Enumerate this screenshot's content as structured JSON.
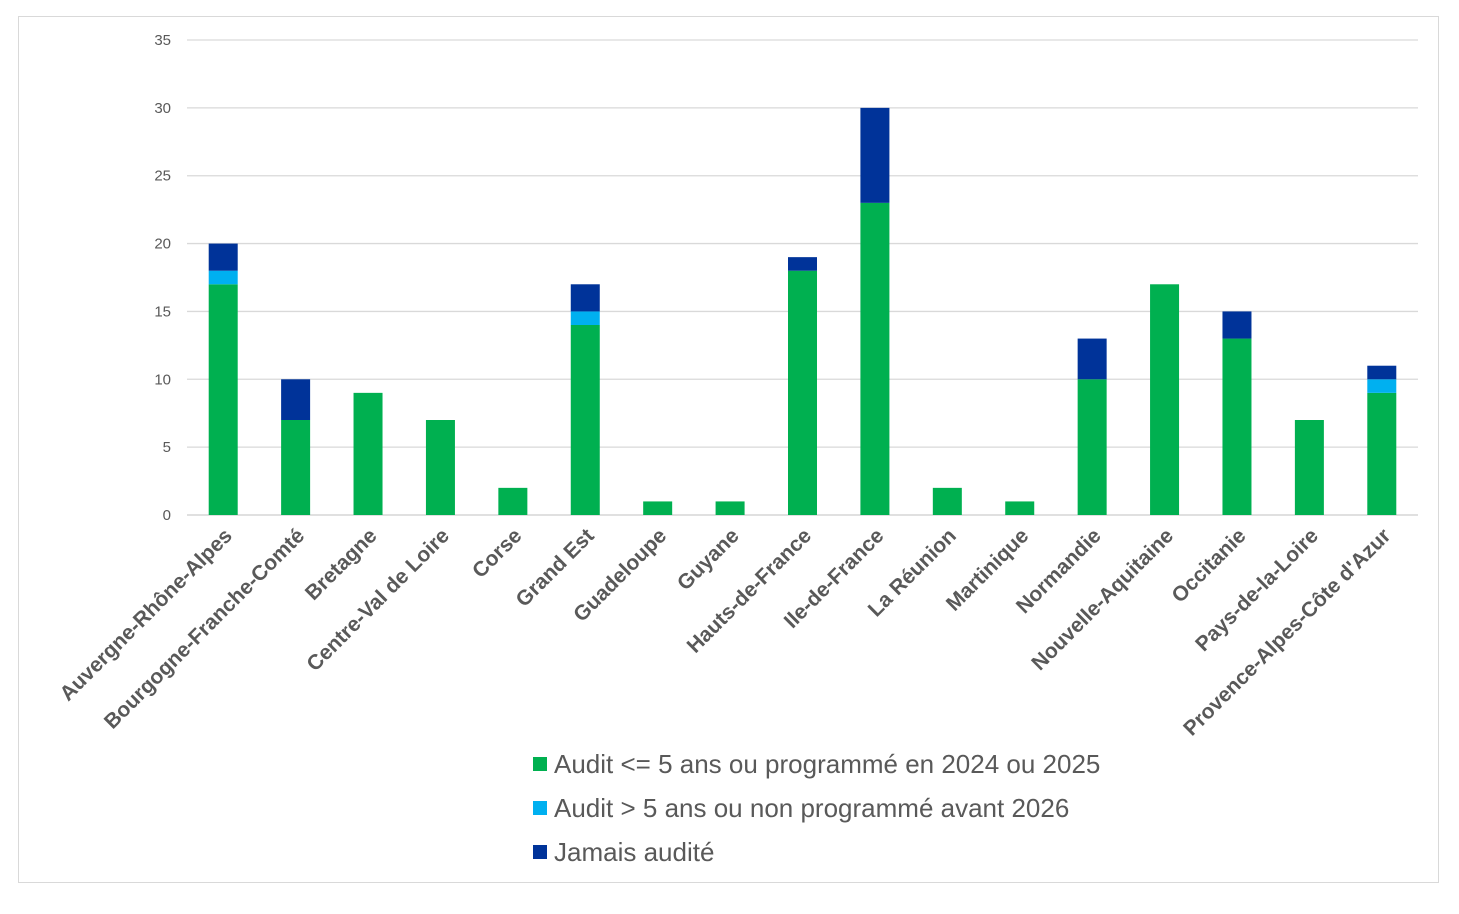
{
  "chart_data": {
    "type": "bar",
    "stacked": true,
    "categories": [
      "Auvergne-Rhône-Alpes",
      "Bourgogne-Franche-Comté",
      "Bretagne",
      "Centre-Val de Loire",
      "Corse",
      "Grand Est",
      "Guadeloupe",
      "Guyane",
      "Hauts-de-France",
      "Ile-de-France",
      "La Réunion",
      "Martinique",
      "Normandie",
      "Nouvelle-Aquitaine",
      "Occitanie",
      "Pays-de-la-Loire",
      "Provence-Alpes-Côte d'Azur"
    ],
    "series": [
      {
        "name": "Audit <= 5 ans ou programmé en 2024 ou 2025",
        "color": "#00b050",
        "values": [
          17,
          7,
          9,
          7,
          2,
          14,
          1,
          1,
          18,
          23,
          2,
          1,
          10,
          17,
          13,
          7,
          9
        ]
      },
      {
        "name": "Audit > 5 ans ou non programmé avant 2026",
        "color": "#00b0f0",
        "values": [
          1,
          0,
          0,
          0,
          0,
          1,
          0,
          0,
          0,
          0,
          0,
          0,
          0,
          0,
          0,
          0,
          1
        ]
      },
      {
        "name": "Jamais audité",
        "color": "#003399",
        "values": [
          2,
          3,
          0,
          0,
          0,
          2,
          0,
          0,
          1,
          7,
          0,
          0,
          3,
          0,
          2,
          0,
          1
        ]
      }
    ],
    "ylim": [
      0,
      35
    ],
    "yticks": [
      0,
      5,
      10,
      15,
      20,
      25,
      30,
      35
    ],
    "grid": true,
    "legend_position": "bottom"
  }
}
